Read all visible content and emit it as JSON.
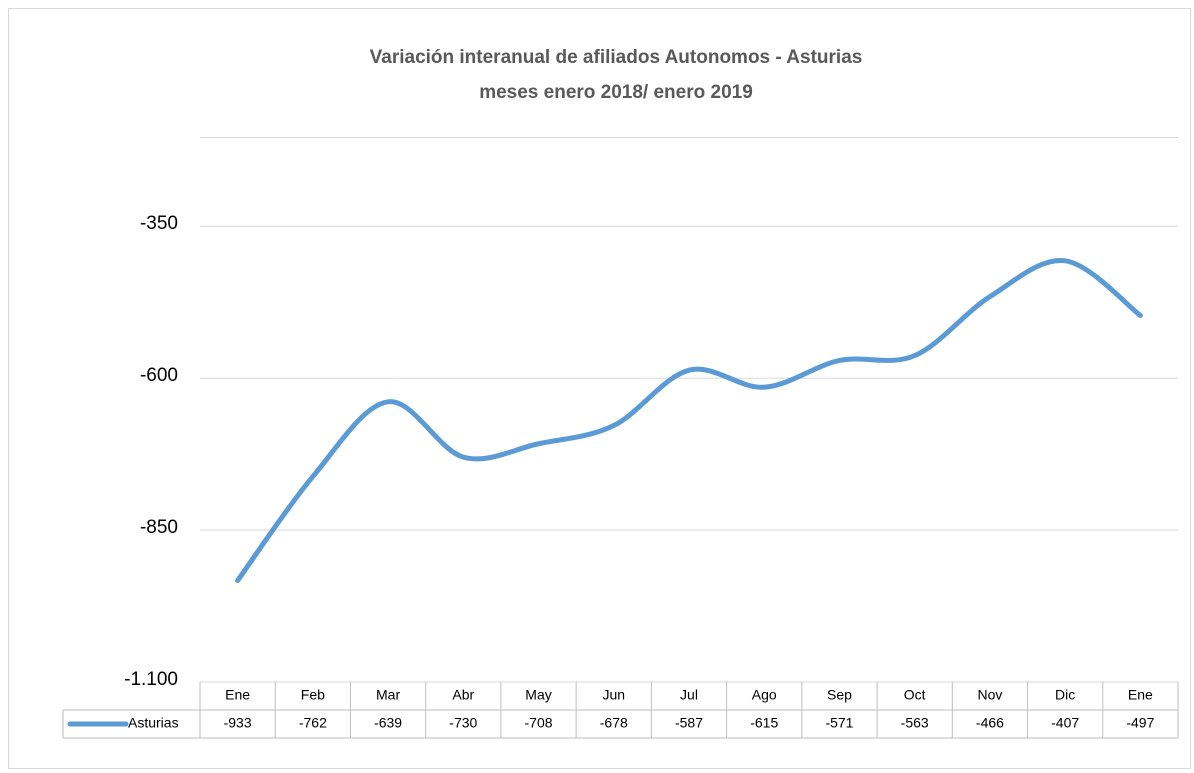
{
  "chart_data": {
    "type": "line",
    "title": "Variación interanual de afiliados Autonomos - Asturias",
    "subtitle": "meses enero 2018/ enero 2019",
    "categories": [
      "Ene",
      "Feb",
      "Mar",
      "Abr",
      "May",
      "Jun",
      "Jul",
      "Ago",
      "Sep",
      "Oct",
      "Nov",
      "Dic",
      "Ene"
    ],
    "series": [
      {
        "name": "Asturias",
        "color": "#5b9bd5",
        "values": [
          -933,
          -762,
          -639,
          -730,
          -708,
          -678,
          -587,
          -615,
          -571,
          -563,
          -466,
          -407,
          -497
        ]
      }
    ],
    "ylim": [
      -1100,
      -200
    ],
    "yticks": [
      {
        "value": -1100,
        "label": "-1.100"
      },
      -850,
      -600,
      -350
    ],
    "grid": true,
    "smooth": true
  }
}
